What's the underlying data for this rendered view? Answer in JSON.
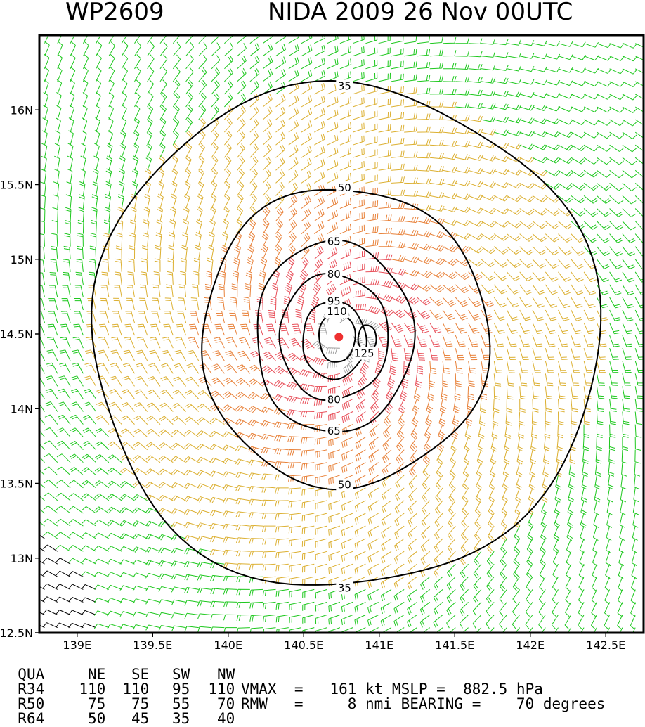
{
  "header": {
    "storm_id": "WP2609",
    "storm_info": "NIDA 2009 26 Nov 00UTC"
  },
  "chart_data": {
    "type": "contour",
    "description_of_marks": "wind barbs and isotach contours (kt)",
    "xlim": [
      138.75,
      142.75
    ],
    "ylim": [
      12.5,
      16.5
    ],
    "x_ticks": [
      {
        "v": 139.0,
        "label": "139E"
      },
      {
        "v": 139.5,
        "label": "139.5E"
      },
      {
        "v": 140.0,
        "label": "140E"
      },
      {
        "v": 140.5,
        "label": "140.5E"
      },
      {
        "v": 141.0,
        "label": "141E"
      },
      {
        "v": 141.5,
        "label": "141.5E"
      },
      {
        "v": 142.0,
        "label": "142E"
      },
      {
        "v": 142.5,
        "label": "142.5E"
      }
    ],
    "y_ticks": [
      {
        "v": 12.5,
        "label": "12.5N"
      },
      {
        "v": 13.0,
        "label": "13N"
      },
      {
        "v": 13.5,
        "label": "13.5N"
      },
      {
        "v": 14.0,
        "label": "14N"
      },
      {
        "v": 14.5,
        "label": "14.5N"
      },
      {
        "v": 15.0,
        "label": "15N"
      },
      {
        "v": 15.5,
        "label": "15.5N"
      },
      {
        "v": 16.0,
        "label": "16N"
      }
    ],
    "center": {
      "lon": 140.77,
      "lat": 14.48
    },
    "contours": [
      {
        "level": 35,
        "label": "35",
        "cx": 140.77,
        "cy": 14.48,
        "rx": 1.68,
        "ry": 1.68,
        "labels": [
          {
            "lon": 140.77,
            "lat": 16.16
          },
          {
            "lon": 140.77,
            "lat": 12.8
          }
        ]
      },
      {
        "level": 50,
        "label": "50",
        "cx": 140.77,
        "cy": 14.48,
        "rx": 0.95,
        "ry": 1.0,
        "labels": [
          {
            "lon": 140.77,
            "lat": 15.48
          },
          {
            "lon": 140.77,
            "lat": 13.49
          }
        ]
      },
      {
        "level": 65,
        "label": "65",
        "cx": 140.7,
        "cy": 14.48,
        "rx": 0.52,
        "ry": 0.64,
        "labels": [
          {
            "lon": 140.7,
            "lat": 15.12
          },
          {
            "lon": 140.7,
            "lat": 13.85
          }
        ]
      },
      {
        "level": 80,
        "label": "80",
        "cx": 140.7,
        "cy": 14.48,
        "rx": 0.36,
        "ry": 0.42,
        "labels": [
          {
            "lon": 140.7,
            "lat": 14.9
          },
          {
            "lon": 140.7,
            "lat": 14.06
          }
        ]
      },
      {
        "level": 95,
        "label": "95",
        "cx": 140.7,
        "cy": 14.46,
        "rx": 0.21,
        "ry": 0.26,
        "labels": [
          {
            "lon": 140.7,
            "lat": 14.72
          }
        ]
      },
      {
        "level": 110,
        "label": "110",
        "cx": 140.72,
        "cy": 14.48,
        "rx": 0.12,
        "ry": 0.17,
        "labels": [
          {
            "lon": 140.72,
            "lat": 14.65
          }
        ]
      },
      {
        "level": 125,
        "label": "125",
        "cx": 140.92,
        "cy": 14.47,
        "rx": 0.06,
        "ry": 0.09,
        "labels": [
          {
            "lon": 140.9,
            "lat": 14.37
          }
        ]
      }
    ],
    "colors": {
      "ge_125": "#a0a0a0",
      "ge_65": "#e8505a",
      "ge_50": "#e8823a",
      "ge_35": "#dcb032",
      "lt_35": "#1ec81e",
      "outer_sw": "#000000",
      "center_marker": "#ee3030",
      "contour": "#000000"
    }
  },
  "stats": {
    "row_qua": {
      "a": "QUA",
      "b": "NE",
      "c": "SE",
      "d": "SW",
      "e": "NW"
    },
    "row_r34": {
      "a": "R34",
      "b": "110",
      "c": "110",
      "d": "95",
      "e": "110"
    },
    "row_r50": {
      "a": "R50",
      "b": "75",
      "c": "75",
      "d": "55",
      "e": "70"
    },
    "row_r64": {
      "a": "R64",
      "b": "50",
      "c": "45",
      "d": "35",
      "e": "40"
    },
    "vmax_text": "VMAX  =   161 kt MSLP =  882.5 hPa",
    "rmw_text": "RMW   =     8 nmi BEARING =    70 degrees"
  }
}
